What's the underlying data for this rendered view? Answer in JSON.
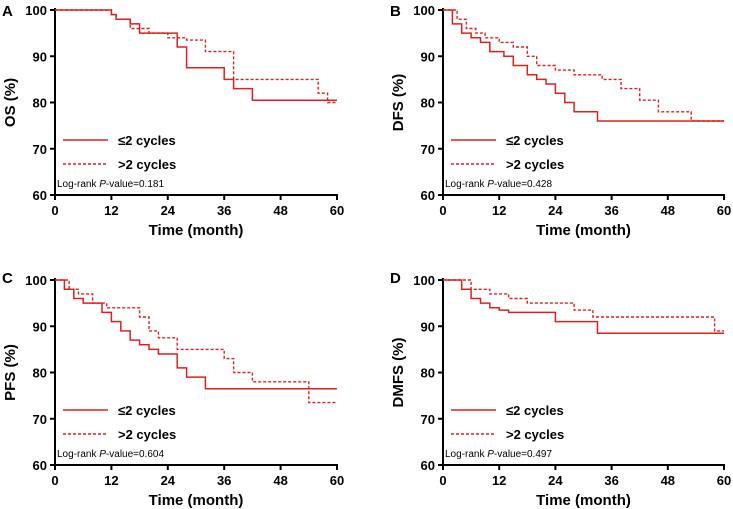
{
  "chart_data": [
    {
      "type": "line",
      "panel": "A",
      "title": "",
      "xlabel": "Time (month)",
      "ylabel": "OS (%)",
      "xlim": [
        0,
        60
      ],
      "ylim": [
        60,
        100
      ],
      "xticks": [
        0,
        12,
        24,
        36,
        48,
        60
      ],
      "yticks": [
        60,
        70,
        80,
        90,
        100
      ],
      "xtick_labels": [
        "0",
        "12",
        "24",
        "36",
        "48",
        "60"
      ],
      "ytick_labels": [
        "60",
        "70",
        "80",
        "90",
        "100"
      ],
      "annotation": {
        "prefix": "Log-rank ",
        "italic": "P",
        "suffix": "-value=0.181"
      },
      "legend_position": "lower-left",
      "series": [
        {
          "name": "≤2 cycles",
          "style": "solid",
          "x": [
            0,
            12,
            13,
            16,
            18,
            26,
            28,
            30,
            36,
            38,
            42,
            60
          ],
          "y": [
            100,
            99,
            98,
            97,
            95,
            92,
            87.5,
            87.5,
            85,
            83,
            80.5,
            80.5
          ]
        },
        {
          "name": ">2 cycles",
          "style": "dotted",
          "x": [
            0,
            12,
            13,
            16,
            20,
            24,
            28,
            32,
            38,
            48,
            56,
            58,
            60
          ],
          "y": [
            100,
            99,
            98,
            96,
            95,
            94,
            93.5,
            91,
            85,
            85,
            82,
            80,
            80
          ]
        }
      ]
    },
    {
      "type": "line",
      "panel": "B",
      "title": "",
      "xlabel": "Time (month)",
      "ylabel": "DFS (%)",
      "xlim": [
        0,
        60
      ],
      "ylim": [
        60,
        100
      ],
      "xticks": [
        0,
        12,
        24,
        36,
        48,
        60
      ],
      "yticks": [
        60,
        70,
        80,
        90,
        100
      ],
      "xtick_labels": [
        "0",
        "12",
        "24",
        "36",
        "48",
        "60"
      ],
      "ytick_labels": [
        "60",
        "70",
        "80",
        "90",
        "100"
      ],
      "annotation": {
        "prefix": "Log-rank ",
        "italic": "P",
        "suffix": "-value=0.428"
      },
      "legend_position": "lower-left",
      "series": [
        {
          "name": "≤2 cycles",
          "style": "solid",
          "x": [
            0,
            2,
            4,
            6,
            8,
            10,
            13,
            15,
            18,
            20,
            22,
            24,
            26,
            28,
            33,
            60
          ],
          "y": [
            100,
            97,
            95,
            94,
            93,
            91,
            90,
            88,
            86,
            85,
            84,
            82,
            80,
            78,
            76,
            76
          ]
        },
        {
          "name": ">2 cycles",
          "style": "dotted",
          "x": [
            0,
            3,
            5,
            7,
            9,
            12,
            15,
            18,
            20,
            24,
            28,
            34,
            38,
            42,
            46,
            53,
            60
          ],
          "y": [
            100,
            98,
            96,
            95,
            94,
            93,
            92,
            90,
            88,
            87,
            86,
            85,
            83,
            80.5,
            78,
            76,
            76
          ]
        }
      ]
    },
    {
      "type": "line",
      "panel": "C",
      "title": "",
      "xlabel": "Time (month)",
      "ylabel": "PFS (%)",
      "xlim": [
        0,
        60
      ],
      "ylim": [
        60,
        100
      ],
      "xticks": [
        0,
        12,
        24,
        36,
        48,
        60
      ],
      "yticks": [
        60,
        70,
        80,
        90,
        100
      ],
      "xtick_labels": [
        "0",
        "12",
        "24",
        "36",
        "48",
        "60"
      ],
      "ytick_labels": [
        "60",
        "70",
        "80",
        "90",
        "100"
      ],
      "annotation": {
        "prefix": "Log-rank ",
        "italic": "P",
        "suffix": "-value=0.604"
      },
      "legend_position": "lower-left",
      "series": [
        {
          "name": "≤2 cycles",
          "style": "solid",
          "x": [
            0,
            2,
            4,
            6,
            10,
            12,
            14,
            16,
            18,
            20,
            22,
            26,
            28,
            32,
            60
          ],
          "y": [
            100,
            98,
            96,
            95,
            93,
            91,
            89,
            87,
            86,
            85,
            84,
            81,
            79,
            76.5,
            76.5
          ]
        },
        {
          "name": ">2 cycles",
          "style": "dotted",
          "x": [
            0,
            3,
            5,
            8,
            11,
            18,
            20,
            22,
            26,
            36,
            38,
            42,
            54,
            60
          ],
          "y": [
            100,
            98,
            97,
            95,
            94,
            92,
            89,
            87.5,
            85,
            83,
            80,
            78,
            73.5,
            73.5
          ]
        }
      ]
    },
    {
      "type": "line",
      "panel": "D",
      "title": "",
      "xlabel": "Time (month)",
      "ylabel": "DMFS (%)",
      "xlim": [
        0,
        60
      ],
      "ylim": [
        60,
        100
      ],
      "xticks": [
        0,
        12,
        24,
        36,
        48,
        60
      ],
      "yticks": [
        60,
        70,
        80,
        90,
        100
      ],
      "xtick_labels": [
        "0",
        "12",
        "24",
        "36",
        "48",
        "60"
      ],
      "ytick_labels": [
        "60",
        "70",
        "80",
        "90",
        "100"
      ],
      "annotation": {
        "prefix": "Log-rank ",
        "italic": "P",
        "suffix": "-value=0.497"
      },
      "legend_position": "lower-left",
      "series": [
        {
          "name": "≤2 cycles",
          "style": "solid",
          "x": [
            0,
            4,
            6,
            8,
            10,
            12,
            14,
            24,
            33,
            60
          ],
          "y": [
            100,
            98,
            96,
            95,
            94,
            93.5,
            93,
            91,
            88.5,
            88.5
          ]
        },
        {
          "name": ">2 cycles",
          "style": "dotted",
          "x": [
            0,
            6,
            10,
            14,
            18,
            28,
            32,
            58,
            60
          ],
          "y": [
            100,
            98,
            97,
            96,
            95,
            93.5,
            92,
            89,
            89
          ]
        }
      ]
    }
  ],
  "colors": {
    "line": "#e02020",
    "axis": "#000000"
  }
}
